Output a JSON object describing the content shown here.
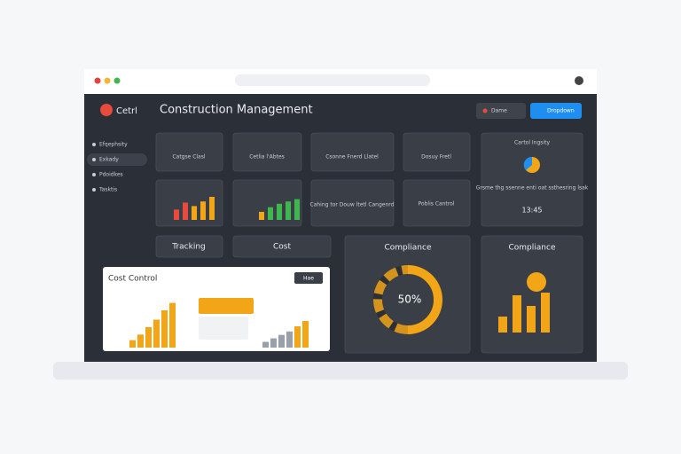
{
  "header": {
    "logo": "Cetrl",
    "title": "Construction Management",
    "button_1": "Dame",
    "button_2": "Dropdown"
  },
  "sidebar": [
    "Efqephsity",
    "Exkady",
    "Pdoidkes",
    "Tasktis"
  ],
  "cards": [
    "Catgse Clasl",
    "Cetlia l'Abtes",
    "Csonne Fnerd Llatel",
    "Dosuy Fretl",
    "Cahing tor Douw ltetl Cangenrd",
    "Poblis Cantrol"
  ],
  "capacity": {
    "title": "Cartol Ingsity",
    "text": "Grsme thg ssenne enti oat ssthesring lsak",
    "time": "13:45"
  },
  "tabs": [
    "Tracking",
    "Cost"
  ],
  "bars_1": [
    9,
    15,
    12,
    16,
    20
  ],
  "bars_2": [
    7,
    11,
    14,
    16,
    18
  ],
  "cost_control": {
    "title": "Cost Control",
    "button": "Hae",
    "orange": [
      4,
      7,
      11,
      15,
      20,
      24
    ],
    "grey": [
      5,
      8,
      11,
      14
    ],
    "orange_2": [
      16,
      20
    ]
  },
  "compliance": {
    "title": "Compliance",
    "value": 50,
    "value_label": "50%"
  },
  "compliance_2": {
    "title": "Compliance",
    "values": [
      12,
      28,
      20,
      30
    ]
  }
}
